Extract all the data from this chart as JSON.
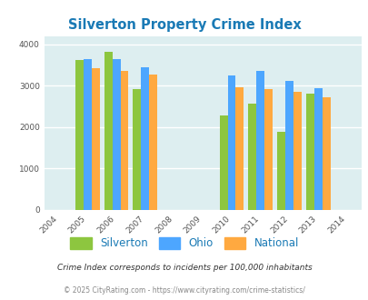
{
  "title": "Silverton Property Crime Index",
  "years": [
    2004,
    2005,
    2006,
    2007,
    2008,
    2009,
    2010,
    2011,
    2012,
    2013,
    2014
  ],
  "bar_years": [
    2005,
    2006,
    2007,
    2010,
    2011,
    2012,
    2013
  ],
  "silverton_values": [
    3620,
    3820,
    2920,
    2290,
    2560,
    1890,
    2800
  ],
  "ohio_values": [
    3650,
    3650,
    3450,
    3240,
    3360,
    3110,
    2950
  ],
  "national_values": [
    3420,
    3360,
    3270,
    2960,
    2920,
    2860,
    2720
  ],
  "silverton_color": "#8dc63f",
  "ohio_color": "#4da6ff",
  "national_color": "#ffa940",
  "bg_color": "#ddeef0",
  "title_color": "#1a7ab5",
  "grid_color": "#ffffff",
  "xlim": [
    2003.5,
    2014.5
  ],
  "ylim": [
    0,
    4200
  ],
  "yticks": [
    0,
    1000,
    2000,
    3000,
    4000
  ],
  "subtitle": "Crime Index corresponds to incidents per 100,000 inhabitants",
  "footer": "© 2025 CityRating.com - https://www.cityrating.com/crime-statistics/",
  "bar_width": 0.28
}
